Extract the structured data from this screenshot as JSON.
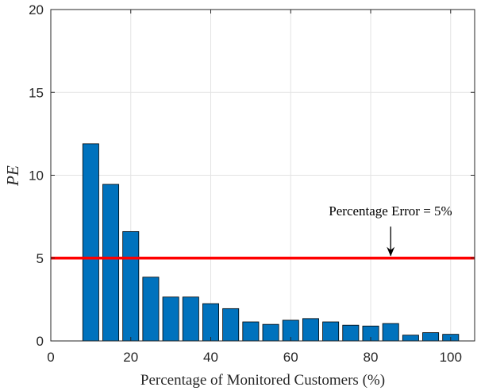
{
  "chart_data": {
    "type": "bar",
    "title": "",
    "xlabel": "Percentage of Monitored Customers (%)",
    "ylabel": "PE",
    "xlim": [
      0,
      106
    ],
    "ylim": [
      0,
      20
    ],
    "xticks": [
      0,
      20,
      40,
      60,
      80,
      100
    ],
    "yticks": [
      0,
      5,
      10,
      15,
      20
    ],
    "grid": true,
    "x": [
      10,
      15,
      20,
      25,
      30,
      35,
      40,
      45,
      50,
      55,
      60,
      65,
      70,
      75,
      80,
      85,
      90,
      95,
      100
    ],
    "values": [
      11.9,
      9.45,
      6.6,
      3.85,
      2.65,
      2.65,
      2.25,
      1.95,
      1.15,
      1.0,
      1.25,
      1.35,
      1.15,
      0.95,
      0.9,
      1.05,
      0.35,
      0.5,
      0.4
    ],
    "bar_width": 4,
    "bar_color": "#0072BD",
    "threshold": {
      "value": 5,
      "color": "#FF0000"
    },
    "annotation": {
      "text": "Percentage Error = 5%",
      "arrow_x": 85,
      "arrow_from_y": 6.9,
      "arrow_to_y": 5.1
    }
  }
}
